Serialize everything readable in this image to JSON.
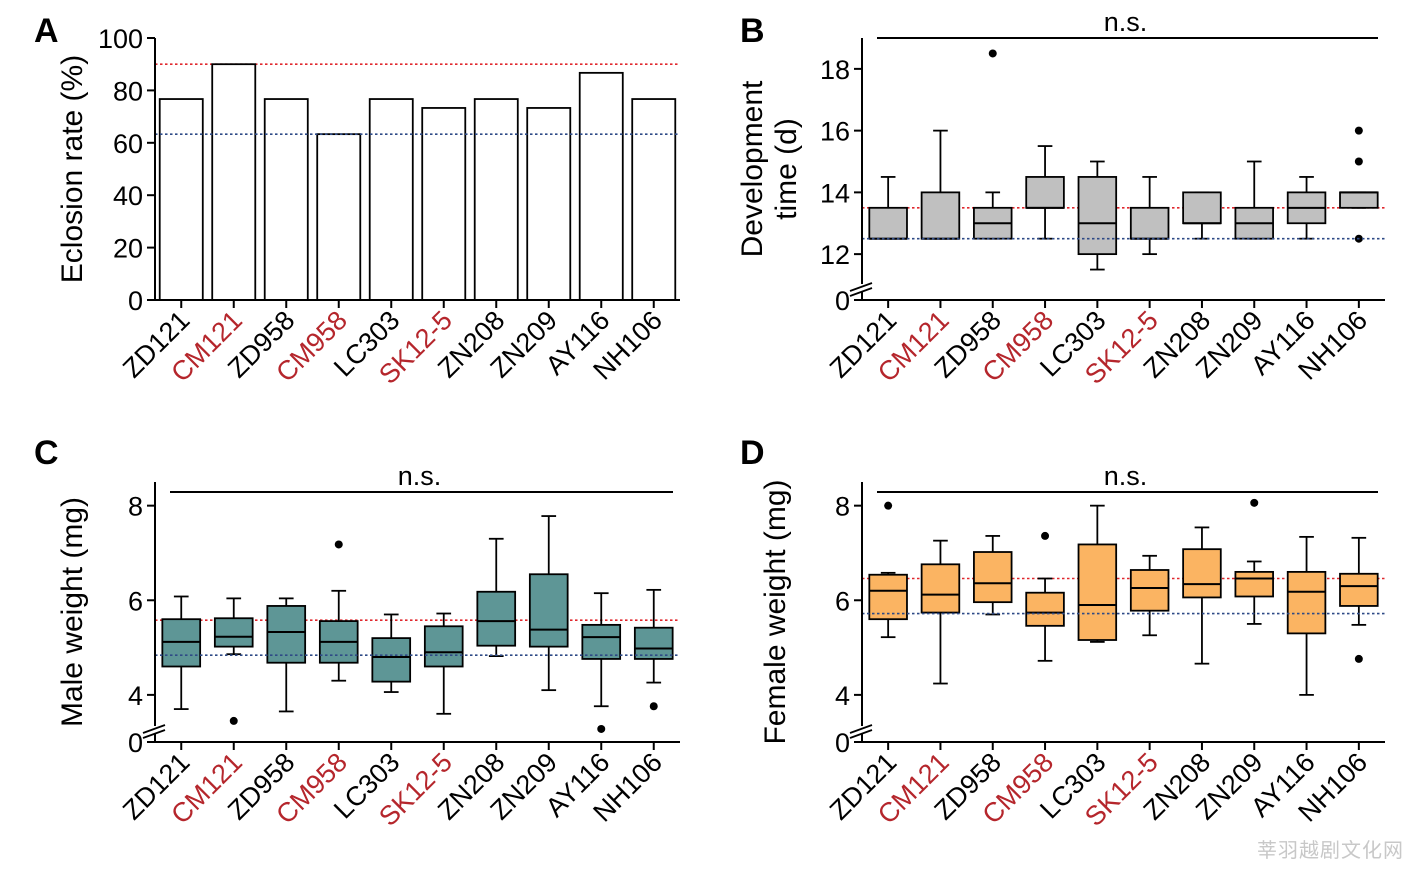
{
  "categories": [
    "ZD121",
    "CM121",
    "ZD958",
    "CM958",
    "LC303",
    "SK12-5",
    "ZN208",
    "ZN209",
    "AY116",
    "NH106"
  ],
  "highlight_categories": [
    "CM121",
    "CM958",
    "SK12-5"
  ],
  "colors": {
    "axis": "#000000",
    "highlight_label": "#b5262c",
    "ref_red": "#e0282e",
    "ref_blue": "#2e4a86",
    "fill_A": "#ffffff",
    "fill_B": "#c0c0c0",
    "fill_C": "#5e9696",
    "fill_D": "#fbb462"
  },
  "watermark": "莘羽越剧文化网",
  "chart_data": [
    {
      "panel": "A",
      "type": "bar",
      "ylabel": "Eclosion rate (%)",
      "ylim": [
        0,
        100
      ],
      "yticks": [
        0,
        20,
        40,
        60,
        80,
        100
      ],
      "categories": [
        "ZD121",
        "CM121",
        "ZD958",
        "CM958",
        "LC303",
        "SK12-5",
        "ZN208",
        "ZN209",
        "AY116",
        "NH106"
      ],
      "values": [
        76.7,
        90,
        76.7,
        63.3,
        76.7,
        73.3,
        76.7,
        73.3,
        86.7,
        76.7
      ],
      "ref_lines": {
        "red": 90,
        "blue": 63.3
      }
    },
    {
      "panel": "B",
      "type": "box",
      "ylabel": "Development time (d)",
      "annotation": "n.s.",
      "ylim": [
        11,
        19
      ],
      "yticks": [
        12,
        14,
        16,
        18
      ],
      "axis_zero_label": "0",
      "categories": [
        "ZD121",
        "CM121",
        "ZD958",
        "CM958",
        "LC303",
        "SK12-5",
        "ZN208",
        "ZN209",
        "AY116",
        "NH106"
      ],
      "boxes": [
        {
          "wlo": 12.5,
          "q1": 12.5,
          "med": 12.5,
          "q3": 13.5,
          "whi": 14.5,
          "outliers": []
        },
        {
          "wlo": 12.5,
          "q1": 12.5,
          "med": 12.5,
          "q3": 14,
          "whi": 16,
          "outliers": []
        },
        {
          "wlo": 12.5,
          "q1": 12.5,
          "med": 13,
          "q3": 13.5,
          "whi": 14,
          "outliers": [
            18.5
          ]
        },
        {
          "wlo": 12.5,
          "q1": 13.5,
          "med": 13.5,
          "q3": 14.5,
          "whi": 15.5,
          "outliers": []
        },
        {
          "wlo": 11.5,
          "q1": 12,
          "med": 13,
          "q3": 14.5,
          "whi": 15,
          "outliers": []
        },
        {
          "wlo": 12,
          "q1": 12.5,
          "med": 12.5,
          "q3": 13.5,
          "whi": 14.5,
          "outliers": []
        },
        {
          "wlo": 12.5,
          "q1": 13,
          "med": 13,
          "q3": 14,
          "whi": 14,
          "outliers": []
        },
        {
          "wlo": 12.5,
          "q1": 12.5,
          "med": 13,
          "q3": 13.5,
          "whi": 15,
          "outliers": []
        },
        {
          "wlo": 12.5,
          "q1": 13,
          "med": 13.5,
          "q3": 14,
          "whi": 14.5,
          "outliers": []
        },
        {
          "wlo": 13.5,
          "q1": 13.5,
          "med": 14,
          "q3": 14,
          "whi": 14,
          "outliers": [
            16,
            15,
            12.5
          ]
        }
      ],
      "ref_lines": {
        "red": 13.5,
        "blue": 12.5
      }
    },
    {
      "panel": "C",
      "type": "box",
      "ylabel": "Male weight (mg)",
      "annotation": "n.s.",
      "ylim": [
        3.3,
        8.5
      ],
      "yticks": [
        4,
        6,
        8
      ],
      "axis_zero_label": "0",
      "categories": [
        "ZD121",
        "CM121",
        "ZD958",
        "CM958",
        "LC303",
        "SK12-5",
        "ZN208",
        "ZN209",
        "AY116",
        "NH106"
      ],
      "boxes": [
        {
          "wlo": 3.7,
          "q1": 4.6,
          "med": 5.12,
          "q3": 5.6,
          "whi": 6.08,
          "outliers": []
        },
        {
          "wlo": 4.86,
          "q1": 5.02,
          "med": 5.23,
          "q3": 5.62,
          "whi": 6.04,
          "outliers": [
            3.45
          ]
        },
        {
          "wlo": 3.65,
          "q1": 4.68,
          "med": 5.33,
          "q3": 5.88,
          "whi": 6.04,
          "outliers": []
        },
        {
          "wlo": 4.3,
          "q1": 4.68,
          "med": 5.12,
          "q3": 5.56,
          "whi": 6.2,
          "outliers": [
            7.18
          ]
        },
        {
          "wlo": 4.06,
          "q1": 4.28,
          "med": 4.8,
          "q3": 5.2,
          "whi": 5.7,
          "outliers": []
        },
        {
          "wlo": 3.6,
          "q1": 4.6,
          "med": 4.9,
          "q3": 5.45,
          "whi": 5.72,
          "outliers": []
        },
        {
          "wlo": 4.82,
          "q1": 5.04,
          "med": 5.56,
          "q3": 6.18,
          "whi": 7.3,
          "outliers": []
        },
        {
          "wlo": 4.1,
          "q1": 5.02,
          "med": 5.38,
          "q3": 6.55,
          "whi": 7.78,
          "outliers": []
        },
        {
          "wlo": 3.76,
          "q1": 4.76,
          "med": 5.22,
          "q3": 5.48,
          "whi": 6.15,
          "outliers": [
            3.28
          ]
        },
        {
          "wlo": 4.26,
          "q1": 4.76,
          "med": 4.98,
          "q3": 5.42,
          "whi": 6.22,
          "outliers": [
            3.76
          ]
        }
      ],
      "ref_lines": {
        "red": 5.58,
        "blue": 4.84
      }
    },
    {
      "panel": "D",
      "type": "box",
      "ylabel": "Female weight (mg)",
      "annotation": "n.s.",
      "ylim": [
        3.3,
        8.5
      ],
      "yticks": [
        4,
        6,
        8
      ],
      "axis_zero_label": "0",
      "categories": [
        "ZD121",
        "CM121",
        "ZD958",
        "CM958",
        "LC303",
        "SK12-5",
        "ZN208",
        "ZN209",
        "AY116",
        "NH106"
      ],
      "boxes": [
        {
          "wlo": 5.22,
          "q1": 5.6,
          "med": 6.2,
          "q3": 6.54,
          "whi": 6.58,
          "outliers": [
            8.0
          ]
        },
        {
          "wlo": 4.24,
          "q1": 5.74,
          "med": 6.12,
          "q3": 6.76,
          "whi": 7.26,
          "outliers": []
        },
        {
          "wlo": 5.7,
          "q1": 5.96,
          "med": 6.36,
          "q3": 7.02,
          "whi": 7.36,
          "outliers": []
        },
        {
          "wlo": 4.72,
          "q1": 5.46,
          "med": 5.74,
          "q3": 6.16,
          "whi": 6.46,
          "outliers": [
            7.36
          ]
        },
        {
          "wlo": 5.12,
          "q1": 5.16,
          "med": 5.9,
          "q3": 7.18,
          "whi": 8.0,
          "outliers": []
        },
        {
          "wlo": 5.26,
          "q1": 5.78,
          "med": 6.26,
          "q3": 6.64,
          "whi": 6.94,
          "outliers": []
        },
        {
          "wlo": 4.66,
          "q1": 6.06,
          "med": 6.34,
          "q3": 7.08,
          "whi": 7.54,
          "outliers": []
        },
        {
          "wlo": 5.5,
          "q1": 6.08,
          "med": 6.46,
          "q3": 6.6,
          "whi": 6.82,
          "outliers": [
            8.06
          ]
        },
        {
          "wlo": 4.0,
          "q1": 5.3,
          "med": 6.18,
          "q3": 6.6,
          "whi": 7.34,
          "outliers": []
        },
        {
          "wlo": 5.48,
          "q1": 5.88,
          "med": 6.3,
          "q3": 6.56,
          "whi": 7.32,
          "outliers": [
            4.76
          ]
        }
      ],
      "ref_lines": {
        "red": 6.46,
        "blue": 5.72
      }
    }
  ]
}
